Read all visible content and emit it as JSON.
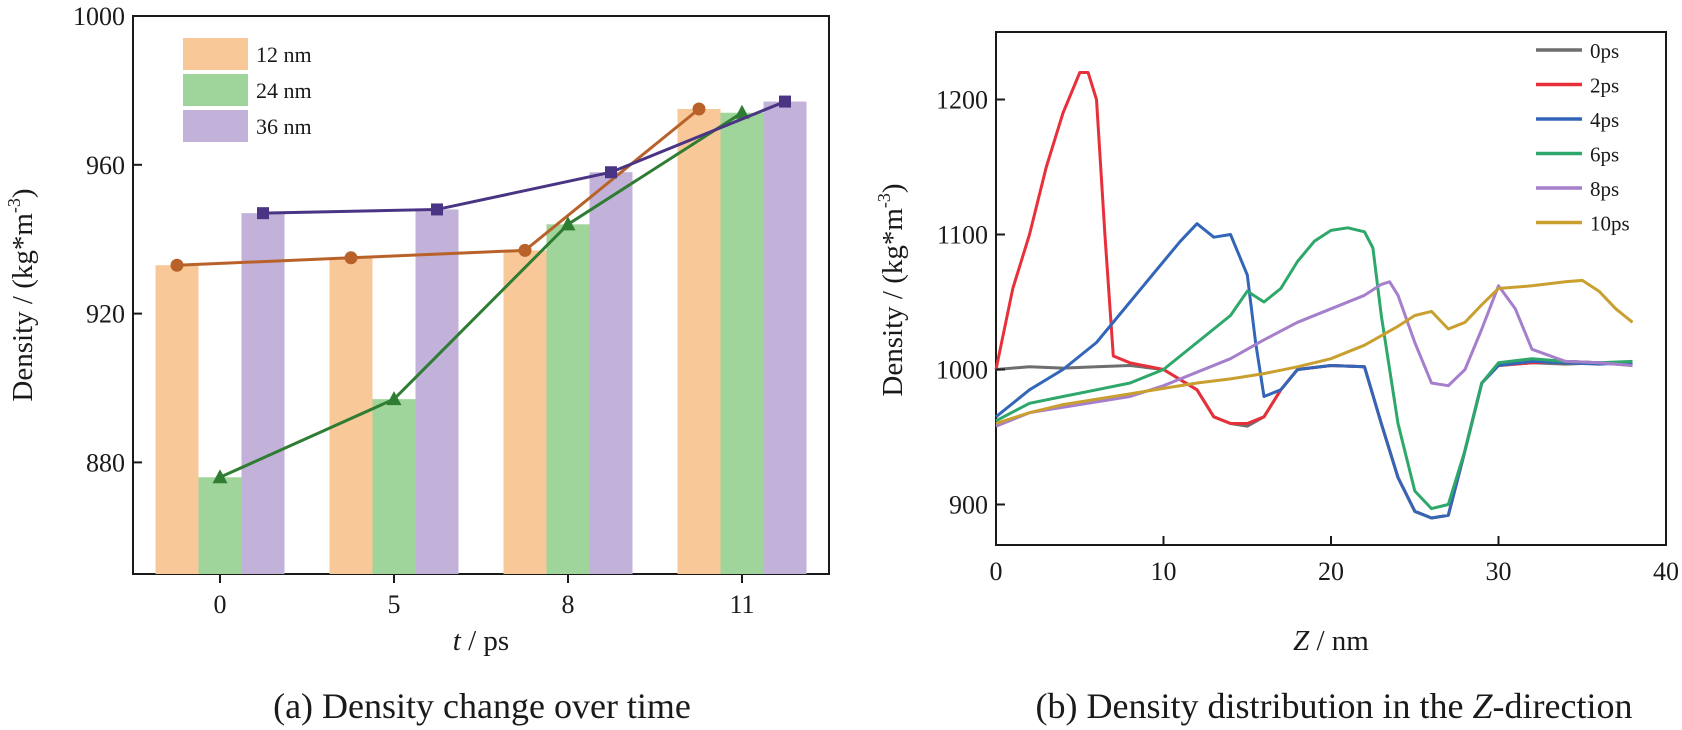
{
  "chart_data": [
    {
      "type": "bar",
      "id": "a",
      "caption_prefix": "(a) Density change over time",
      "title": "",
      "xlabel_italic": "t",
      "xlabel_rest": " / ps",
      "ylabel_main": "Density / (kg*m",
      "ylabel_sup": "-3",
      "ylabel_close": ")",
      "categories": [
        "0",
        "5",
        "8",
        "11"
      ],
      "ylim": [
        850,
        1000
      ],
      "yticks": [
        880,
        920,
        960,
        1000
      ],
      "series": [
        {
          "name": "12 nm",
          "color": "#f9c898",
          "line_color": "#b8622a",
          "marker": "circle",
          "values": [
            933,
            935,
            937,
            975
          ]
        },
        {
          "name": "24 nm",
          "color": "#9fd49a",
          "line_color": "#2f7d32",
          "marker": "triangle",
          "values": [
            876,
            897,
            944,
            974
          ]
        },
        {
          "name": "36 nm",
          "color": "#c2b2da",
          "line_color": "#4a3584",
          "marker": "square",
          "values": [
            947,
            948,
            958,
            977
          ]
        }
      ]
    },
    {
      "type": "line",
      "id": "b",
      "caption_prefix": "(b) Density distribution in the ",
      "caption_italic": "Z",
      "caption_suffix": "-direction",
      "title": "",
      "xlabel_italic": "Z",
      "xlabel_rest": " / nm",
      "ylabel_main": "Density / (kg*m",
      "ylabel_sup": "-3",
      "ylabel_close": ")",
      "xlim": [
        0,
        40
      ],
      "ylim": [
        870,
        1250
      ],
      "xticks": [
        0,
        10,
        20,
        30,
        40
      ],
      "yticks": [
        900,
        1000,
        1100,
        1200
      ],
      "series": [
        {
          "name": "0ps",
          "color": "#6e6e6e",
          "x": [
            0,
            2,
            4,
            6,
            8,
            10,
            12,
            13,
            14,
            15,
            16,
            17,
            18,
            20,
            22,
            23,
            24,
            25,
            26,
            27,
            28,
            29,
            30,
            32,
            34,
            36,
            38
          ],
          "y": [
            1000,
            1002,
            1001,
            1002,
            1003,
            1000,
            985,
            965,
            960,
            958,
            965,
            985,
            1000,
            1003,
            1002,
            960,
            920,
            895,
            890,
            892,
            940,
            990,
            1003,
            1005,
            1004,
            1005,
            1003
          ]
        },
        {
          "name": "2ps",
          "color": "#e8303a",
          "x": [
            0,
            1,
            2,
            3,
            4,
            5,
            5.5,
            6,
            6.5,
            7,
            8,
            10,
            12,
            13,
            14,
            15,
            16,
            17,
            18,
            20,
            22,
            23,
            24,
            25,
            26,
            27,
            28,
            29,
            30,
            32,
            34,
            36,
            38
          ],
          "y": [
            1000,
            1060,
            1100,
            1150,
            1190,
            1220,
            1220,
            1200,
            1100,
            1010,
            1005,
            1000,
            985,
            965,
            960,
            960,
            965,
            985,
            1000,
            1003,
            1002,
            960,
            920,
            895,
            890,
            892,
            940,
            990,
            1003,
            1005,
            1006,
            1005,
            1004
          ]
        },
        {
          "name": "4ps",
          "color": "#3366b8",
          "x": [
            0,
            2,
            4,
            6,
            8,
            10,
            11,
            12,
            13,
            14,
            15,
            15.5,
            16,
            17,
            18,
            20,
            22,
            23,
            24,
            25,
            26,
            27,
            28,
            29,
            30,
            32,
            34,
            36,
            38
          ],
          "y": [
            965,
            985,
            1000,
            1020,
            1050,
            1080,
            1095,
            1108,
            1098,
            1100,
            1070,
            1020,
            980,
            985,
            1000,
            1003,
            1002,
            960,
            920,
            895,
            890,
            892,
            940,
            990,
            1003,
            1006,
            1005,
            1004,
            1005
          ]
        },
        {
          "name": "6ps",
          "color": "#2ea86a",
          "x": [
            0,
            2,
            4,
            6,
            8,
            10,
            12,
            14,
            15,
            16,
            17,
            18,
            19,
            20,
            21,
            22,
            22.5,
            23,
            24,
            25,
            26,
            27,
            28,
            29,
            30,
            32,
            34,
            36,
            38
          ],
          "y": [
            962,
            975,
            980,
            985,
            990,
            1000,
            1020,
            1040,
            1058,
            1050,
            1060,
            1080,
            1095,
            1103,
            1105,
            1102,
            1090,
            1040,
            960,
            910,
            897,
            900,
            940,
            990,
            1005,
            1008,
            1006,
            1005,
            1006
          ]
        },
        {
          "name": "8ps",
          "color": "#a67fcc",
          "x": [
            0,
            2,
            4,
            6,
            8,
            10,
            12,
            14,
            16,
            18,
            20,
            22,
            23,
            23.5,
            24,
            25,
            26,
            27,
            28,
            29,
            30,
            31,
            32,
            34,
            36,
            38
          ],
          "y": [
            958,
            968,
            972,
            976,
            980,
            988,
            998,
            1008,
            1022,
            1035,
            1045,
            1055,
            1063,
            1065,
            1055,
            1020,
            990,
            988,
            1000,
            1030,
            1062,
            1045,
            1015,
            1006,
            1005,
            1003
          ]
        },
        {
          "name": "10ps",
          "color": "#c9a030",
          "x": [
            0,
            2,
            4,
            6,
            8,
            10,
            12,
            14,
            16,
            18,
            20,
            22,
            24,
            25,
            26,
            27,
            28,
            29,
            30,
            32,
            34,
            35,
            36,
            37,
            38
          ],
          "y": [
            960,
            968,
            974,
            978,
            982,
            986,
            990,
            993,
            997,
            1002,
            1008,
            1018,
            1032,
            1040,
            1043,
            1030,
            1035,
            1048,
            1060,
            1062,
            1065,
            1066,
            1058,
            1045,
            1035
          ]
        }
      ]
    }
  ]
}
